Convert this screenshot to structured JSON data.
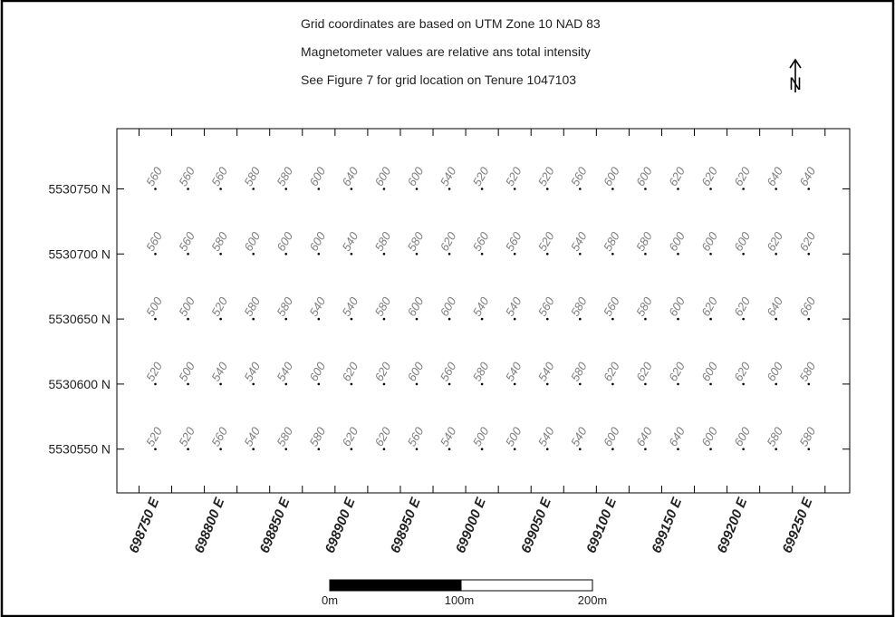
{
  "notes": [
    "Grid coordinates are based on UTM Zone 10 NAD 83",
    "Magnetometer values are relative ans total intensity",
    "See Figure 7 for grid location on Tenure 1047103"
  ],
  "north_arrow": {
    "icon": "north-arrow-icon",
    "label": "N"
  },
  "colors": {
    "frame": "#000000",
    "value_text": "#808080",
    "station_dot": "#000000"
  },
  "grid": {
    "eastings": [
      698737.5,
      698762.5,
      698787.5,
      698812.5,
      698837.5,
      698862.5,
      698887.5,
      698912.5,
      698937.5,
      698962.5,
      698987.5,
      699012.5,
      699037.5,
      699062.5,
      699087.5,
      699112.5,
      699137.5,
      699162.5,
      699187.5,
      699212.5,
      699237.5,
      699262.5
    ],
    "northings": [
      5530750,
      5530700,
      5530650,
      5530600,
      5530550
    ],
    "easting_labels": [
      "698750 E",
      "698800 E",
      "698850 E",
      "698900 E",
      "698950 E",
      "699000 E",
      "699050 E",
      "699100 E",
      "699150 E",
      "699200 E",
      "699250 E"
    ],
    "northing_labels": [
      "5530750 N",
      "5530700 N",
      "5530650 N",
      "5530600 N",
      "5530550 N"
    ],
    "values": [
      [
        "560",
        "560",
        "560",
        "580",
        "580",
        "600",
        "640",
        "600",
        "600",
        "540",
        "520",
        "520",
        "520",
        "560",
        "600",
        "600",
        "620",
        "620",
        "620",
        "640",
        "640"
      ],
      [
        "560",
        "560",
        "580",
        "600",
        "600",
        "600",
        "540",
        "580",
        "580",
        "620",
        "560",
        "560",
        "520",
        "540",
        "580",
        "580",
        "600",
        "600",
        "600",
        "620",
        "620"
      ],
      [
        "500",
        "500",
        "520",
        "580",
        "580",
        "540",
        "540",
        "580",
        "600",
        "600",
        "540",
        "540",
        "560",
        "580",
        "560",
        "580",
        "600",
        "620",
        "620",
        "640",
        "660"
      ],
      [
        "520",
        "500",
        "540",
        "540",
        "540",
        "600",
        "620",
        "620",
        "600",
        "560",
        "580",
        "540",
        "540",
        "580",
        "620",
        "620",
        "620",
        "600",
        "620",
        "600",
        "580"
      ],
      [
        "520",
        "520",
        "560",
        "540",
        "580",
        "580",
        "620",
        "620",
        "560",
        "540",
        "500",
        "500",
        "540",
        "540",
        "600",
        "640",
        "640",
        "600",
        "600",
        "580",
        "580"
      ]
    ]
  },
  "scale_bar": {
    "labels": [
      "0m",
      "100m",
      "200m"
    ]
  }
}
